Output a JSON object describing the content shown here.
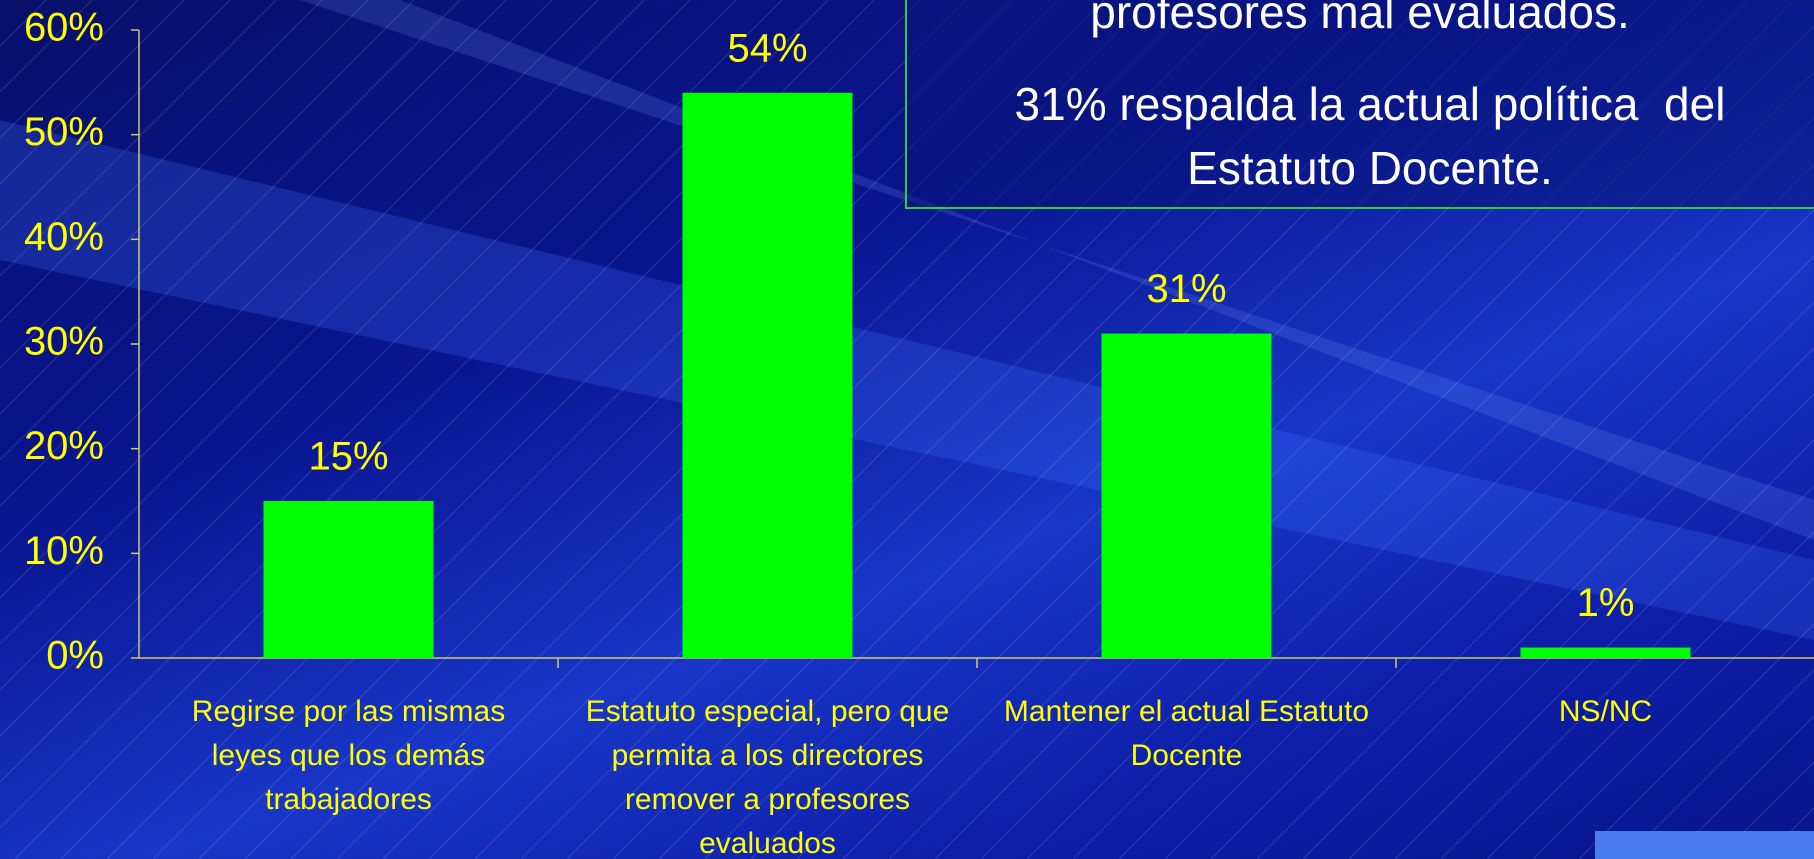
{
  "chart_data": {
    "type": "bar",
    "categories": [
      "Regirse por las mismas leyes que los demás trabajadores",
      "Estatuto especial, pero que permita a los directores remover a profesores evaluados",
      "Mantener el actual Estatuto Docente",
      "NS/NC"
    ],
    "values": [
      15,
      54,
      31,
      1
    ],
    "value_labels": [
      "15%",
      "54%",
      "31%",
      "1%"
    ],
    "color": "#00ff00",
    "ylim": [
      0,
      60
    ],
    "yticks": [
      {
        "value": 0,
        "label": "0%"
      },
      {
        "value": 10,
        "label": "10%"
      },
      {
        "value": 20,
        "label": "20%"
      },
      {
        "value": 30,
        "label": "30%"
      },
      {
        "value": 40,
        "label": "40%"
      },
      {
        "value": 50,
        "label": "50%"
      },
      {
        "value": 60,
        "label": "60%"
      }
    ],
    "annotations": [
      "profesores mal evaluados.",
      "31% respalda la actual política  del Estatuto Docente."
    ]
  }
}
